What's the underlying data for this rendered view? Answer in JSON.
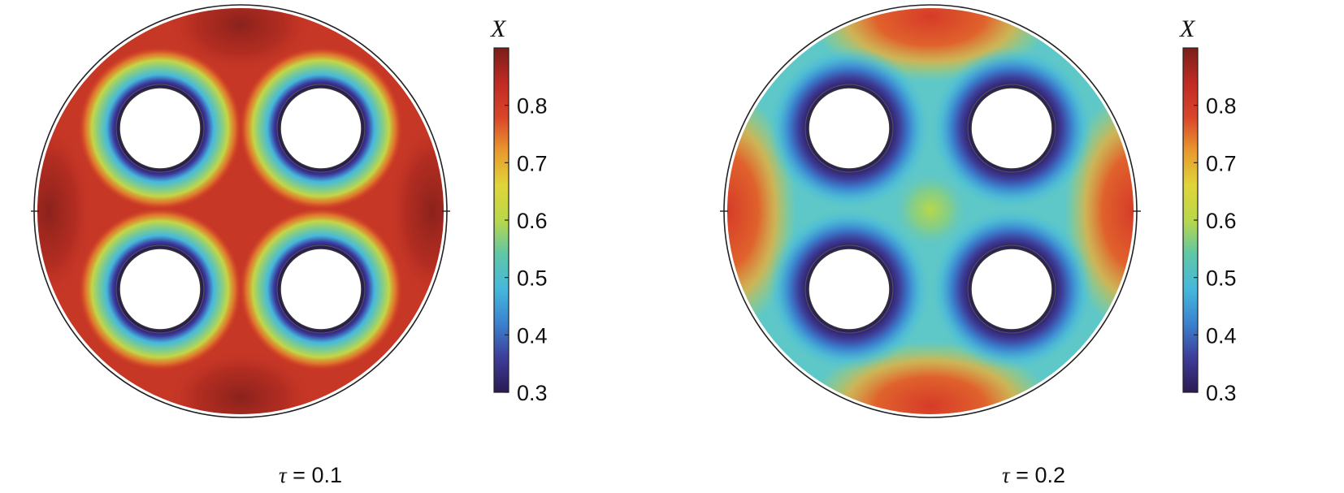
{
  "panels": [
    {
      "caption_symbol": "τ",
      "caption_equals": " = ",
      "caption_value": "0.1",
      "colorbar": {
        "label": "X",
        "min": 0.3,
        "max": 0.9,
        "ticks": [
          "0.3",
          "0.4",
          "0.5",
          "0.6",
          "0.7",
          "0.8"
        ]
      }
    },
    {
      "caption_symbol": "τ",
      "caption_equals": " = ",
      "caption_value": "0.2",
      "colorbar": {
        "label": "X",
        "min": 0.3,
        "max": 0.9,
        "ticks": [
          "0.3",
          "0.4",
          "0.5",
          "0.6",
          "0.7",
          "0.8"
        ]
      }
    }
  ],
  "colormap": [
    "#2b1a55",
    "#3d3d99",
    "#3b82cf",
    "#46b8dc",
    "#5ec7a8",
    "#b8d84a",
    "#e0d53a",
    "#e89a2e",
    "#d9452a",
    "#bf2a23",
    "#7a1f1a"
  ],
  "colors": {
    "outline": "#222222",
    "hole": "#ffffff"
  }
}
